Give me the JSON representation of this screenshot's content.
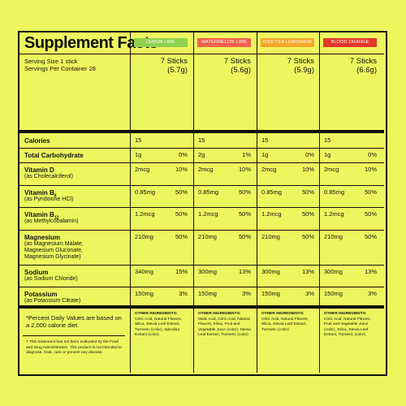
{
  "title": "Supplement Facts",
  "serving": {
    "size": "Serving Size 1 stick",
    "servings": "Servings Per Container 28"
  },
  "flavors": [
    {
      "name": "LEMON LIME",
      "color": "#8fd14f",
      "amount": "7 Sticks",
      "weight": "(5.7g)",
      "other_ingredients_label": "OTHER INGREDIENTS:",
      "other_ingredients": "Citric Acid, Natural Flavors, Silica, Stevia Leaf Extract, Turmeric (color), Spirulina Extract (color)"
    },
    {
      "name": "WATERMELON LIME",
      "color": "#f0604e",
      "amount": "7 Sticks",
      "weight": "(5.6g)",
      "other_ingredients_label": "OTHER INGREDIENTS:",
      "other_ingredients": "Malic Acid, Citric Acid, Natural Flavors, Silica, Fruit and Vegetable Juice (color), Stevia Leaf Extract, Turmeric (color)"
    },
    {
      "name": "ICED TEA LEMONADE",
      "color": "#f5a62a",
      "amount": "7 Sticks",
      "weight": "(5.9g)",
      "other_ingredients_label": "OTHER INGREDIENTS:",
      "other_ingredients": "Citric Acid, Natural Flavors, Silica, Stevia Leaf Extract, Turmeric (color)"
    },
    {
      "name": "BLOOD ORANGE",
      "color": "#e3382c",
      "amount": "7 Sticks",
      "weight": "(6.6g)",
      "other_ingredients_label": "OTHER INGREDIENTS:",
      "other_ingredients": "Citric Acid, Natural Flavors, Fruit and Vegetable Juice (color), Silica, Stevia Leaf Extract, Turmeric (color)"
    }
  ],
  "nutrients": [
    {
      "name": "Calories",
      "cells": [
        [
          "15"
        ],
        [
          "15"
        ],
        [
          "15"
        ],
        [
          "15"
        ]
      ]
    },
    {
      "name": "Total Carbohydrate",
      "cells": [
        [
          "1g",
          "0%"
        ],
        [
          "2g",
          "1%"
        ],
        [
          "1g",
          "0%"
        ],
        [
          "1g",
          "0%"
        ]
      ]
    },
    {
      "name": "Vitamin D",
      "subtitle": "(as Cholecalciferol)",
      "cells": [
        [
          "2mcg",
          "10%"
        ],
        [
          "2mcg",
          "10%"
        ],
        [
          "2mcg",
          "10%"
        ],
        [
          "2mcg",
          "10%"
        ]
      ]
    },
    {
      "name": "Vitamin B",
      "subscript": "6",
      "subtitle": "(as Pyridoxine HCl)",
      "cells": [
        [
          "0.85mg",
          "50%"
        ],
        [
          "0.85mg",
          "50%"
        ],
        [
          "0.85mg",
          "50%"
        ],
        [
          "0.85mg",
          "50%"
        ]
      ]
    },
    {
      "name": "Vitamin B",
      "subscript": "12",
      "subtitle": "(as Methylcobalamin)",
      "cells": [
        [
          "1.2mcg",
          "50%"
        ],
        [
          "1.2mcg",
          "50%"
        ],
        [
          "1.2mcg",
          "50%"
        ],
        [
          "1.2mcg",
          "50%"
        ]
      ]
    },
    {
      "name": "Magnesium",
      "subtitle": "(as Magnesium Malate, Magnesium Gluconate, Magnesium Glycinate)",
      "cells": [
        [
          "210mg",
          "50%"
        ],
        [
          "210mg",
          "50%"
        ],
        [
          "210mg",
          "50%"
        ],
        [
          "210mg",
          "50%"
        ]
      ]
    },
    {
      "name": "Sodium",
      "subtitle": "(as Sodium Chloride)",
      "cells": [
        [
          "340mg",
          "15%"
        ],
        [
          "300mg",
          "13%"
        ],
        [
          "300mg",
          "13%"
        ],
        [
          "300mg",
          "13%"
        ]
      ]
    },
    {
      "name": "Potassium",
      "subtitle": "(as Potassium Citrate)",
      "cells": [
        [
          "150mg",
          "3%"
        ],
        [
          "150mg",
          "3%"
        ],
        [
          "150mg",
          "3%"
        ],
        [
          "150mg",
          "3%"
        ]
      ]
    }
  ],
  "footnote": "*Percent Daily Values are based on a 2,000 calorie diet.",
  "disclaimer": "† This Statement has not been evaluated by the Food and Drug Administration. This product is not intended to diagnose, treat, cure or prevent any disease."
}
